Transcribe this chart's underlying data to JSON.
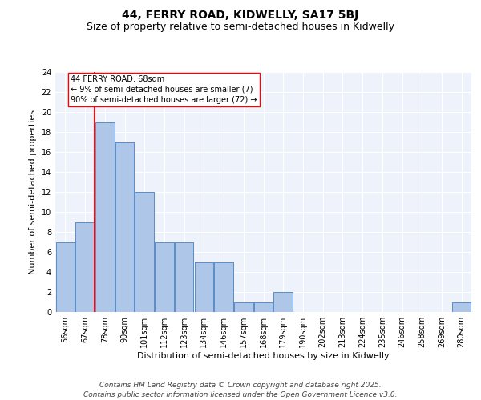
{
  "title_line1": "44, FERRY ROAD, KIDWELLY, SA17 5BJ",
  "title_line2": "Size of property relative to semi-detached houses in Kidwelly",
  "xlabel": "Distribution of semi-detached houses by size in Kidwelly",
  "ylabel": "Number of semi-detached properties",
  "categories": [
    "56sqm",
    "67sqm",
    "78sqm",
    "90sqm",
    "101sqm",
    "112sqm",
    "123sqm",
    "134sqm",
    "146sqm",
    "157sqm",
    "168sqm",
    "179sqm",
    "190sqm",
    "202sqm",
    "213sqm",
    "224sqm",
    "235sqm",
    "246sqm",
    "258sqm",
    "269sqm",
    "280sqm"
  ],
  "values": [
    7,
    9,
    19,
    17,
    12,
    7,
    7,
    5,
    5,
    1,
    1,
    2,
    0,
    0,
    0,
    0,
    0,
    0,
    0,
    0,
    1
  ],
  "ylim": [
    0,
    24
  ],
  "yticks": [
    0,
    2,
    4,
    6,
    8,
    10,
    12,
    14,
    16,
    18,
    20,
    22,
    24
  ],
  "bar_color": "#aec6e8",
  "bar_edge_color": "#5b8fc7",
  "annotation_text_line1": "44 FERRY ROAD: 68sqm",
  "annotation_text_line2": "← 9% of semi-detached houses are smaller (7)",
  "annotation_text_line3": "90% of semi-detached houses are larger (72) →",
  "footer_line1": "Contains HM Land Registry data © Crown copyright and database right 2025.",
  "footer_line2": "Contains public sector information licensed under the Open Government Licence v3.0.",
  "background_color": "#eef2fa",
  "grid_color": "#ffffff",
  "title_fontsize": 10,
  "subtitle_fontsize": 9,
  "label_fontsize": 8,
  "tick_fontsize": 7,
  "footer_fontsize": 6.5,
  "ann_fontsize": 7
}
